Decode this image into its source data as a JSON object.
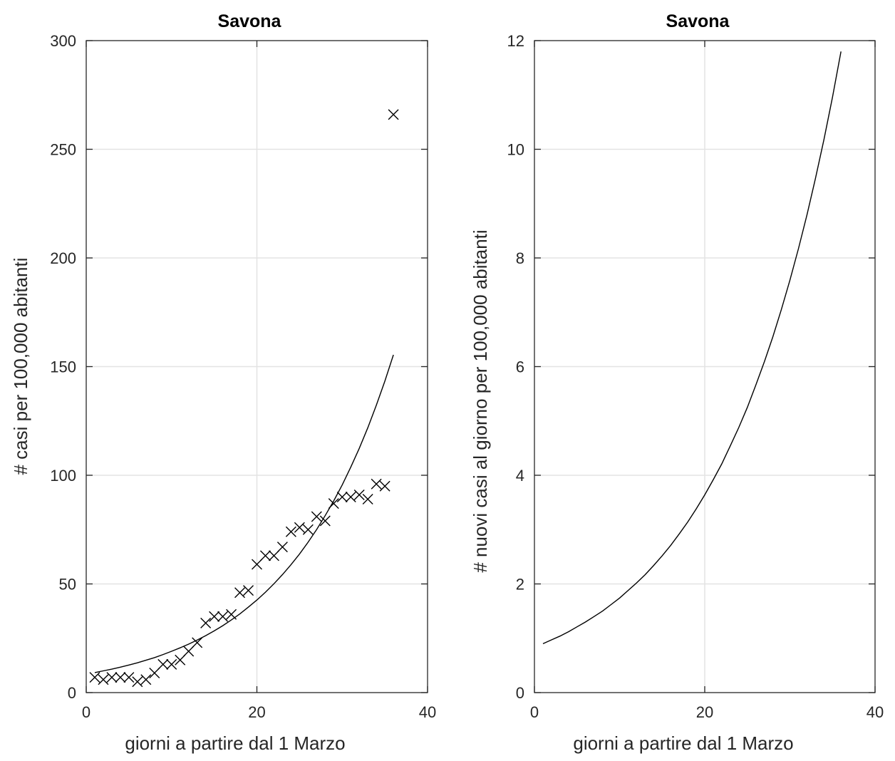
{
  "chart_data": [
    {
      "type": "scatter",
      "title": "Savona",
      "xlabel": "giorni a partire dal 1 Marzo",
      "ylabel": "# casi per 100,000 abitanti",
      "xlim": [
        0,
        40
      ],
      "ylim": [
        0,
        300
      ],
      "xticks": [
        0,
        20,
        40
      ],
      "yticks": [
        0,
        50,
        100,
        150,
        200,
        250,
        300
      ],
      "grid": true,
      "color": "#000000",
      "series": [
        {
          "type": "scatter",
          "marker": "x",
          "x": [
            1,
            2,
            3,
            4,
            5,
            6,
            7,
            8,
            9,
            10,
            11,
            12,
            13,
            14,
            15,
            16,
            17,
            18,
            19,
            20,
            21,
            22,
            23,
            24,
            25,
            26,
            27,
            28,
            29,
            30,
            31,
            32,
            33,
            34,
            35,
            36
          ],
          "y": [
            7,
            6,
            7,
            7,
            7,
            5,
            6,
            9,
            13,
            13,
            15,
            19,
            23,
            32,
            35,
            35,
            36,
            46,
            47,
            59,
            63,
            63,
            67,
            74,
            76,
            75,
            81,
            79,
            87,
            90,
            90,
            91,
            89,
            96,
            95,
            266
          ]
        },
        {
          "type": "line",
          "x": [
            1,
            2,
            3,
            4,
            5,
            6,
            7,
            8,
            9,
            10,
            11,
            12,
            13,
            14,
            15,
            16,
            17,
            18,
            19,
            20,
            21,
            22,
            23,
            24,
            25,
            26,
            27,
            28,
            29,
            30,
            31,
            32,
            33,
            34,
            35,
            36
          ],
          "y": [
            9.2,
            10.0,
            10.8,
            11.7,
            12.7,
            13.7,
            14.9,
            16.1,
            17.5,
            19.0,
            20.6,
            22.3,
            24.2,
            26.2,
            28.4,
            30.8,
            33.4,
            36.2,
            39.3,
            42.6,
            46.2,
            50.1,
            54.3,
            58.9,
            63.8,
            69.2,
            75.0,
            81.4,
            88.2,
            95.6,
            103.7,
            112.4,
            121.9,
            132.2,
            143.3,
            155.4
          ]
        }
      ]
    },
    {
      "type": "line",
      "title": "Savona",
      "xlabel": "giorni a partire dal 1 Marzo",
      "ylabel": "# nuovi casi al giorno per 100,000 abitanti",
      "xlim": [
        0,
        40
      ],
      "ylim": [
        0,
        12
      ],
      "xticks": [
        0,
        20,
        40
      ],
      "yticks": [
        0,
        2,
        4,
        6,
        8,
        10,
        12
      ],
      "grid": true,
      "color": "#000000",
      "series": [
        {
          "type": "line",
          "x": [
            1,
            2,
            3,
            4,
            5,
            6,
            7,
            8,
            9,
            10,
            11,
            12,
            13,
            14,
            15,
            16,
            17,
            18,
            19,
            20,
            21,
            22,
            23,
            24,
            25,
            26,
            27,
            28,
            29,
            30,
            31,
            32,
            33,
            34,
            35,
            36
          ],
          "y": [
            0.9,
            0.97,
            1.04,
            1.12,
            1.21,
            1.3,
            1.4,
            1.5,
            1.62,
            1.74,
            1.88,
            2.02,
            2.17,
            2.34,
            2.52,
            2.71,
            2.92,
            3.14,
            3.38,
            3.64,
            3.92,
            4.21,
            4.54,
            4.88,
            5.25,
            5.66,
            6.09,
            6.55,
            7.05,
            7.59,
            8.17,
            8.79,
            9.46,
            10.18,
            10.96,
            11.8
          ]
        }
      ]
    }
  ]
}
